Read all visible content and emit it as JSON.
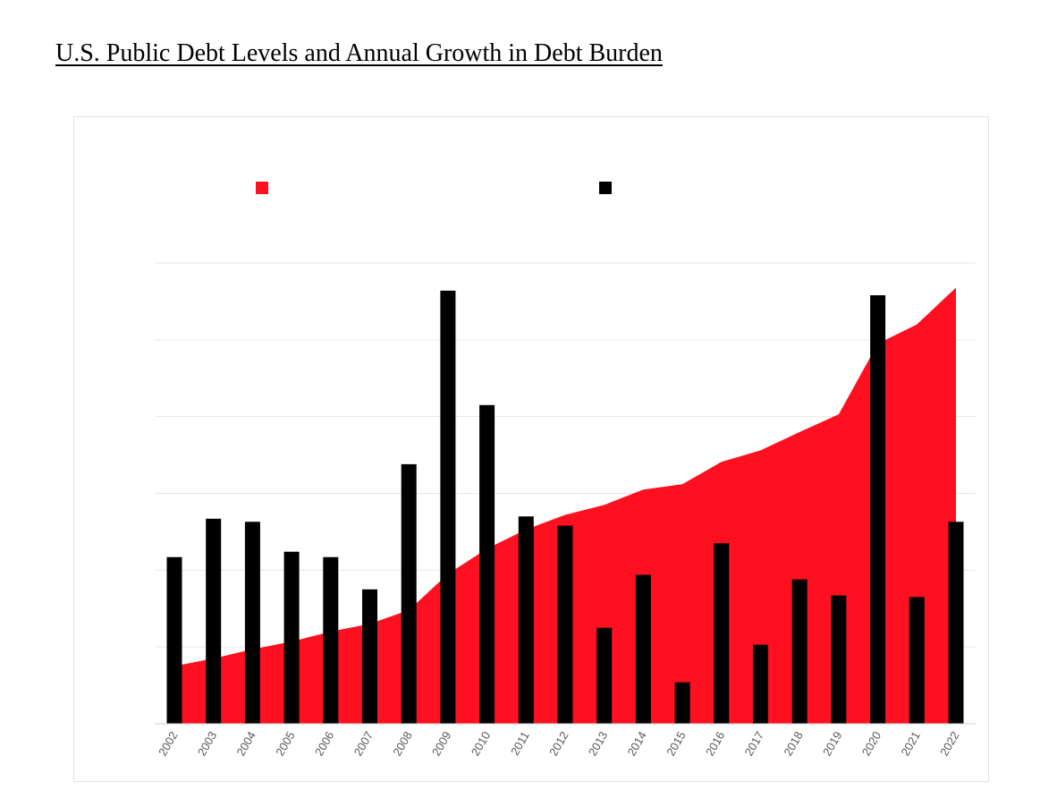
{
  "page": {
    "title": "U.S. Public Debt Levels and Annual Growth in Debt Burden"
  },
  "chart_data": {
    "type": "bar",
    "title": "U.S. Public Debt Levels and Annual Growth in Debt Burden",
    "categories": [
      "2002",
      "2003",
      "2004",
      "2005",
      "2006",
      "2007",
      "2008",
      "2009",
      "2010",
      "2011",
      "2012",
      "2013",
      "2014",
      "2015",
      "2016",
      "2017",
      "2018",
      "2019",
      "2020",
      "2021",
      "2022"
    ],
    "series": [
      {
        "kind": "area",
        "color": "#ff1020",
        "values": [
          0.75,
          0.85,
          0.97,
          1.07,
          1.2,
          1.3,
          1.48,
          1.95,
          2.28,
          2.53,
          2.72,
          2.85,
          3.05,
          3.12,
          3.41,
          3.56,
          3.8,
          4.03,
          4.95,
          5.2,
          5.68
        ]
      },
      {
        "kind": "bar",
        "color": "#000000",
        "values": [
          2.17,
          2.67,
          2.63,
          2.24,
          2.17,
          1.75,
          3.38,
          5.64,
          4.15,
          2.7,
          2.58,
          1.25,
          1.94,
          0.54,
          2.35,
          1.03,
          1.88,
          1.67,
          5.58,
          1.65,
          2.63
        ]
      }
    ],
    "ylim": [
      0,
      6
    ],
    "grid": true,
    "legend": "top-left",
    "grid_color": "#e6e6e6",
    "axis_color": "#d0d0d0"
  }
}
